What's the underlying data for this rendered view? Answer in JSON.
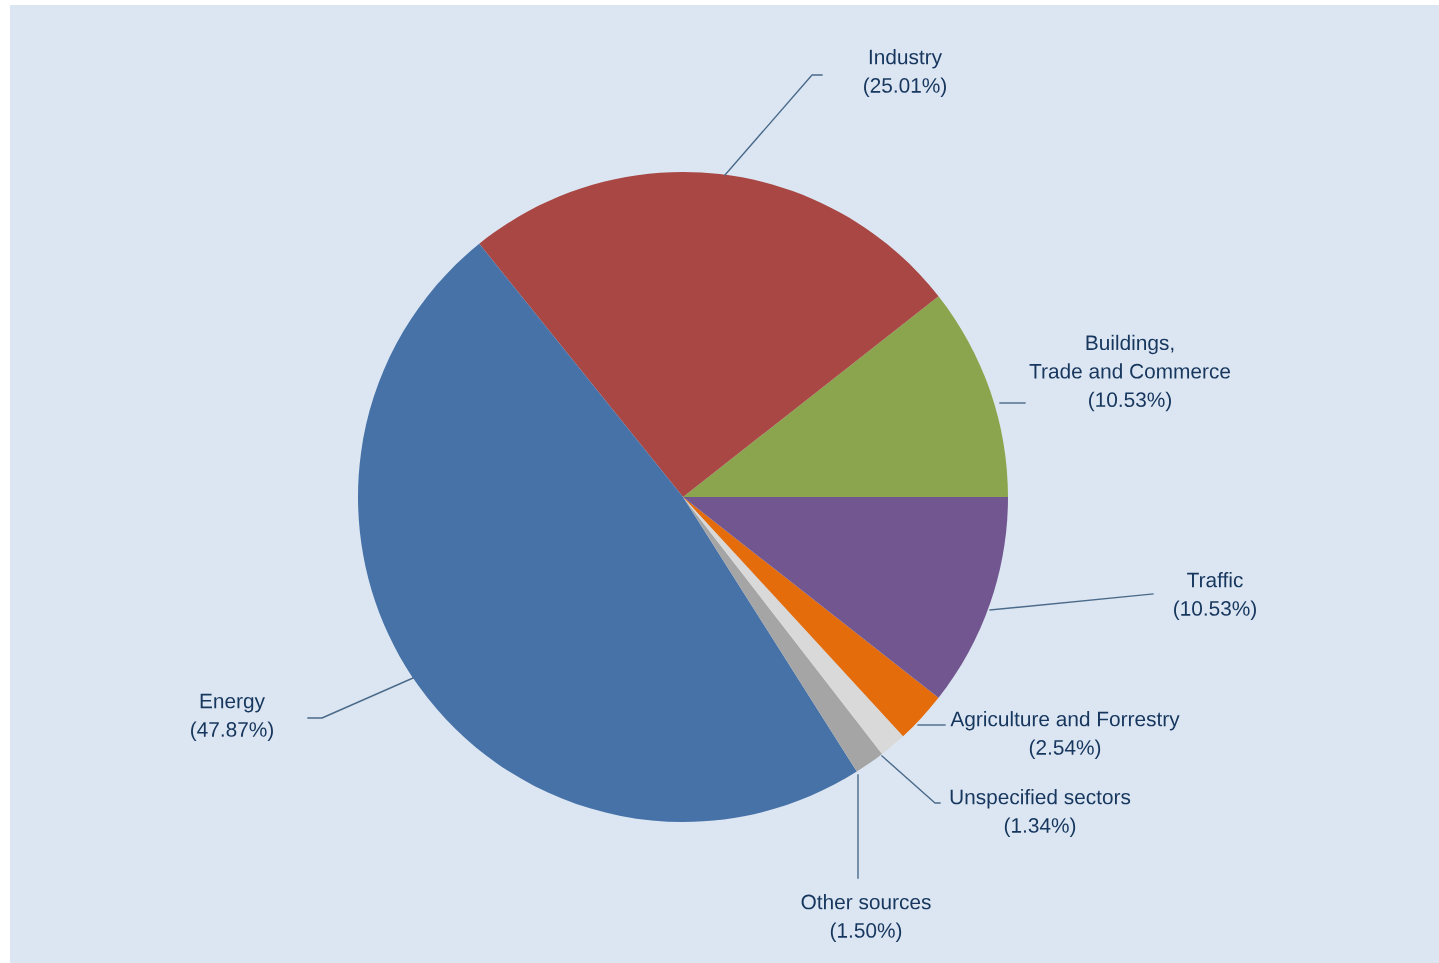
{
  "chart_data": {
    "type": "pie",
    "categories": [
      "Buildings,\nTrade and Commerce",
      "Industry",
      "Energy",
      "Other sources",
      "Unspecified sectors",
      "Agriculture and Forrestry",
      "Traffic"
    ],
    "values": [
      10.53,
      25.01,
      47.87,
      1.5,
      1.34,
      2.54,
      10.53
    ],
    "value_labels": [
      "(10.53%)",
      "(25.01%)",
      "(47.87%)",
      "(1.50%)",
      "(1.34%)",
      "(2.54%)",
      "(10.53%)"
    ],
    "colors": [
      "#8ba54e",
      "#a84744",
      "#4672a8",
      "#a5a5a5",
      "#d9d9d9",
      "#e46c0a",
      "#715690"
    ],
    "legend": false
  }
}
